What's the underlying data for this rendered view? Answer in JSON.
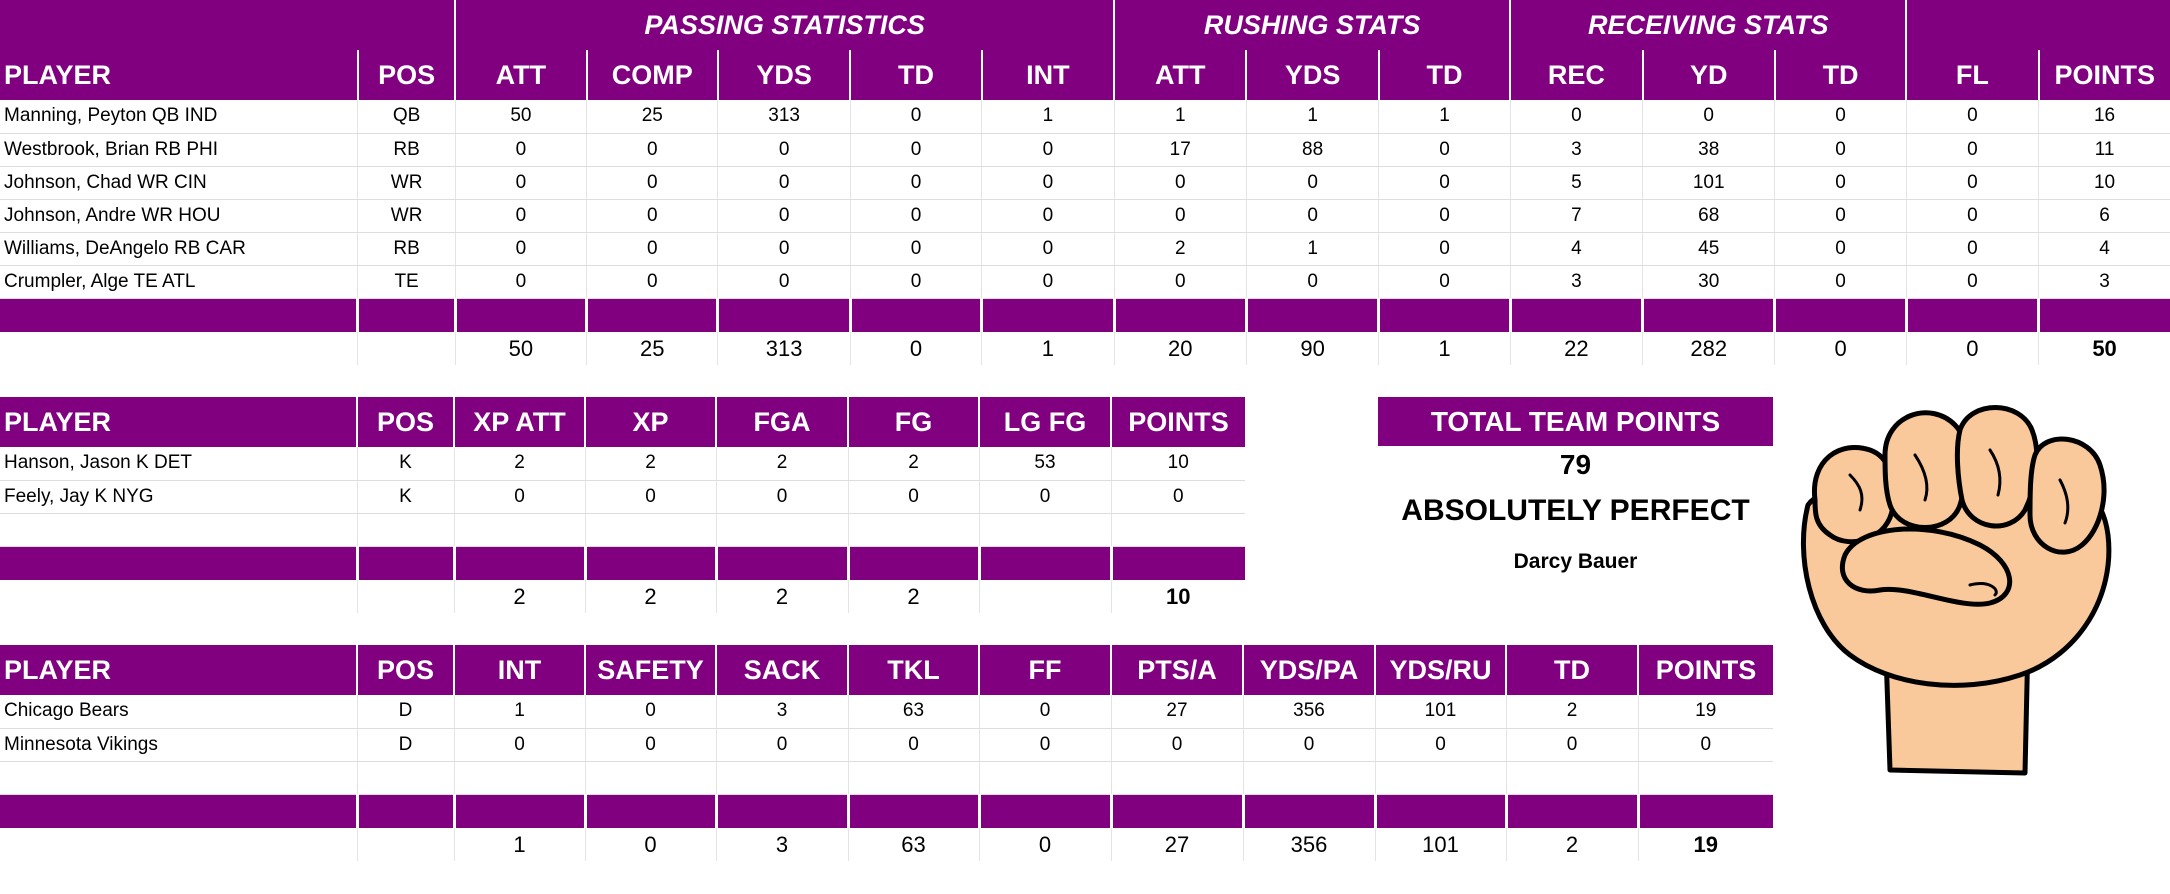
{
  "colors": {
    "header_bg": "#800080",
    "header_text": "#ffffff"
  },
  "offense": {
    "group_headers": [
      "PASSING STATISTICS",
      "RUSHING STATS",
      "RECEIVING STATS"
    ],
    "columns": [
      "PLAYER",
      "POS",
      "ATT",
      "COMP",
      "YDS",
      "TD",
      "INT",
      "ATT",
      "YDS",
      "TD",
      "REC",
      "YD",
      "TD",
      "FL",
      "POINTS"
    ],
    "rows": [
      [
        "Manning, Peyton QB IND",
        "QB",
        "50",
        "25",
        "313",
        "0",
        "1",
        "1",
        "1",
        "1",
        "0",
        "0",
        "0",
        "0",
        "16"
      ],
      [
        "Westbrook, Brian RB PHI",
        "RB",
        "0",
        "0",
        "0",
        "0",
        "0",
        "17",
        "88",
        "0",
        "3",
        "38",
        "0",
        "0",
        "11"
      ],
      [
        "Johnson, Chad WR CIN",
        "WR",
        "0",
        "0",
        "0",
        "0",
        "0",
        "0",
        "0",
        "0",
        "5",
        "101",
        "0",
        "0",
        "10"
      ],
      [
        "Johnson, Andre WR HOU",
        "WR",
        "0",
        "0",
        "0",
        "0",
        "0",
        "0",
        "0",
        "0",
        "7",
        "68",
        "0",
        "0",
        "6"
      ],
      [
        "Williams, DeAngelo RB CAR",
        "RB",
        "0",
        "0",
        "0",
        "0",
        "0",
        "2",
        "1",
        "0",
        "4",
        "45",
        "0",
        "0",
        "4"
      ],
      [
        "Crumpler, Alge TE ATL",
        "TE",
        "0",
        "0",
        "0",
        "0",
        "0",
        "0",
        "0",
        "0",
        "3",
        "30",
        "0",
        "0",
        "3"
      ]
    ],
    "totals": [
      "",
      "",
      "50",
      "25",
      "313",
      "0",
      "1",
      "20",
      "90",
      "1",
      "22",
      "282",
      "0",
      "0",
      "50"
    ]
  },
  "kickers": {
    "columns": [
      "PLAYER",
      "POS",
      "XP ATT",
      "XP",
      "FGA",
      "FG",
      "LG FG",
      "POINTS"
    ],
    "rows": [
      [
        "Hanson, Jason K DET",
        "K",
        "2",
        "2",
        "2",
        "2",
        "53",
        "10"
      ],
      [
        "Feely, Jay K NYG",
        "K",
        "0",
        "0",
        "0",
        "0",
        "0",
        "0"
      ],
      [
        "",
        "",
        "",
        "",
        "",
        "",
        "",
        ""
      ]
    ],
    "totals": [
      "",
      "",
      "2",
      "2",
      "2",
      "2",
      "",
      "10"
    ]
  },
  "defense": {
    "columns": [
      "PLAYER",
      "POS",
      "INT",
      "SAFETY",
      "SACK",
      "TKL",
      "FF",
      "PTS/A",
      "YDS/PA",
      "YDS/RU",
      "TD",
      "POINTS"
    ],
    "rows": [
      [
        "Chicago Bears",
        "D",
        "1",
        "0",
        "3",
        "63",
        "0",
        "27",
        "356",
        "101",
        "2",
        "19"
      ],
      [
        "Minnesota Vikings",
        "D",
        "0",
        "0",
        "0",
        "0",
        "0",
        "0",
        "0",
        "0",
        "0",
        "0"
      ],
      [
        "",
        "",
        "",
        "",
        "",
        "",
        "",
        "",
        "",
        "",
        "",
        ""
      ]
    ],
    "totals": [
      "",
      "",
      "1",
      "0",
      "3",
      "63",
      "0",
      "27",
      "356",
      "101",
      "2",
      "19"
    ]
  },
  "team_summary": {
    "title": "TOTAL TEAM POINTS",
    "points": "79",
    "verdict": "ABSOLUTELY PERFECT",
    "owner": "Darcy Bauer"
  },
  "graphic": {
    "icon": "raised-fist-icon"
  }
}
